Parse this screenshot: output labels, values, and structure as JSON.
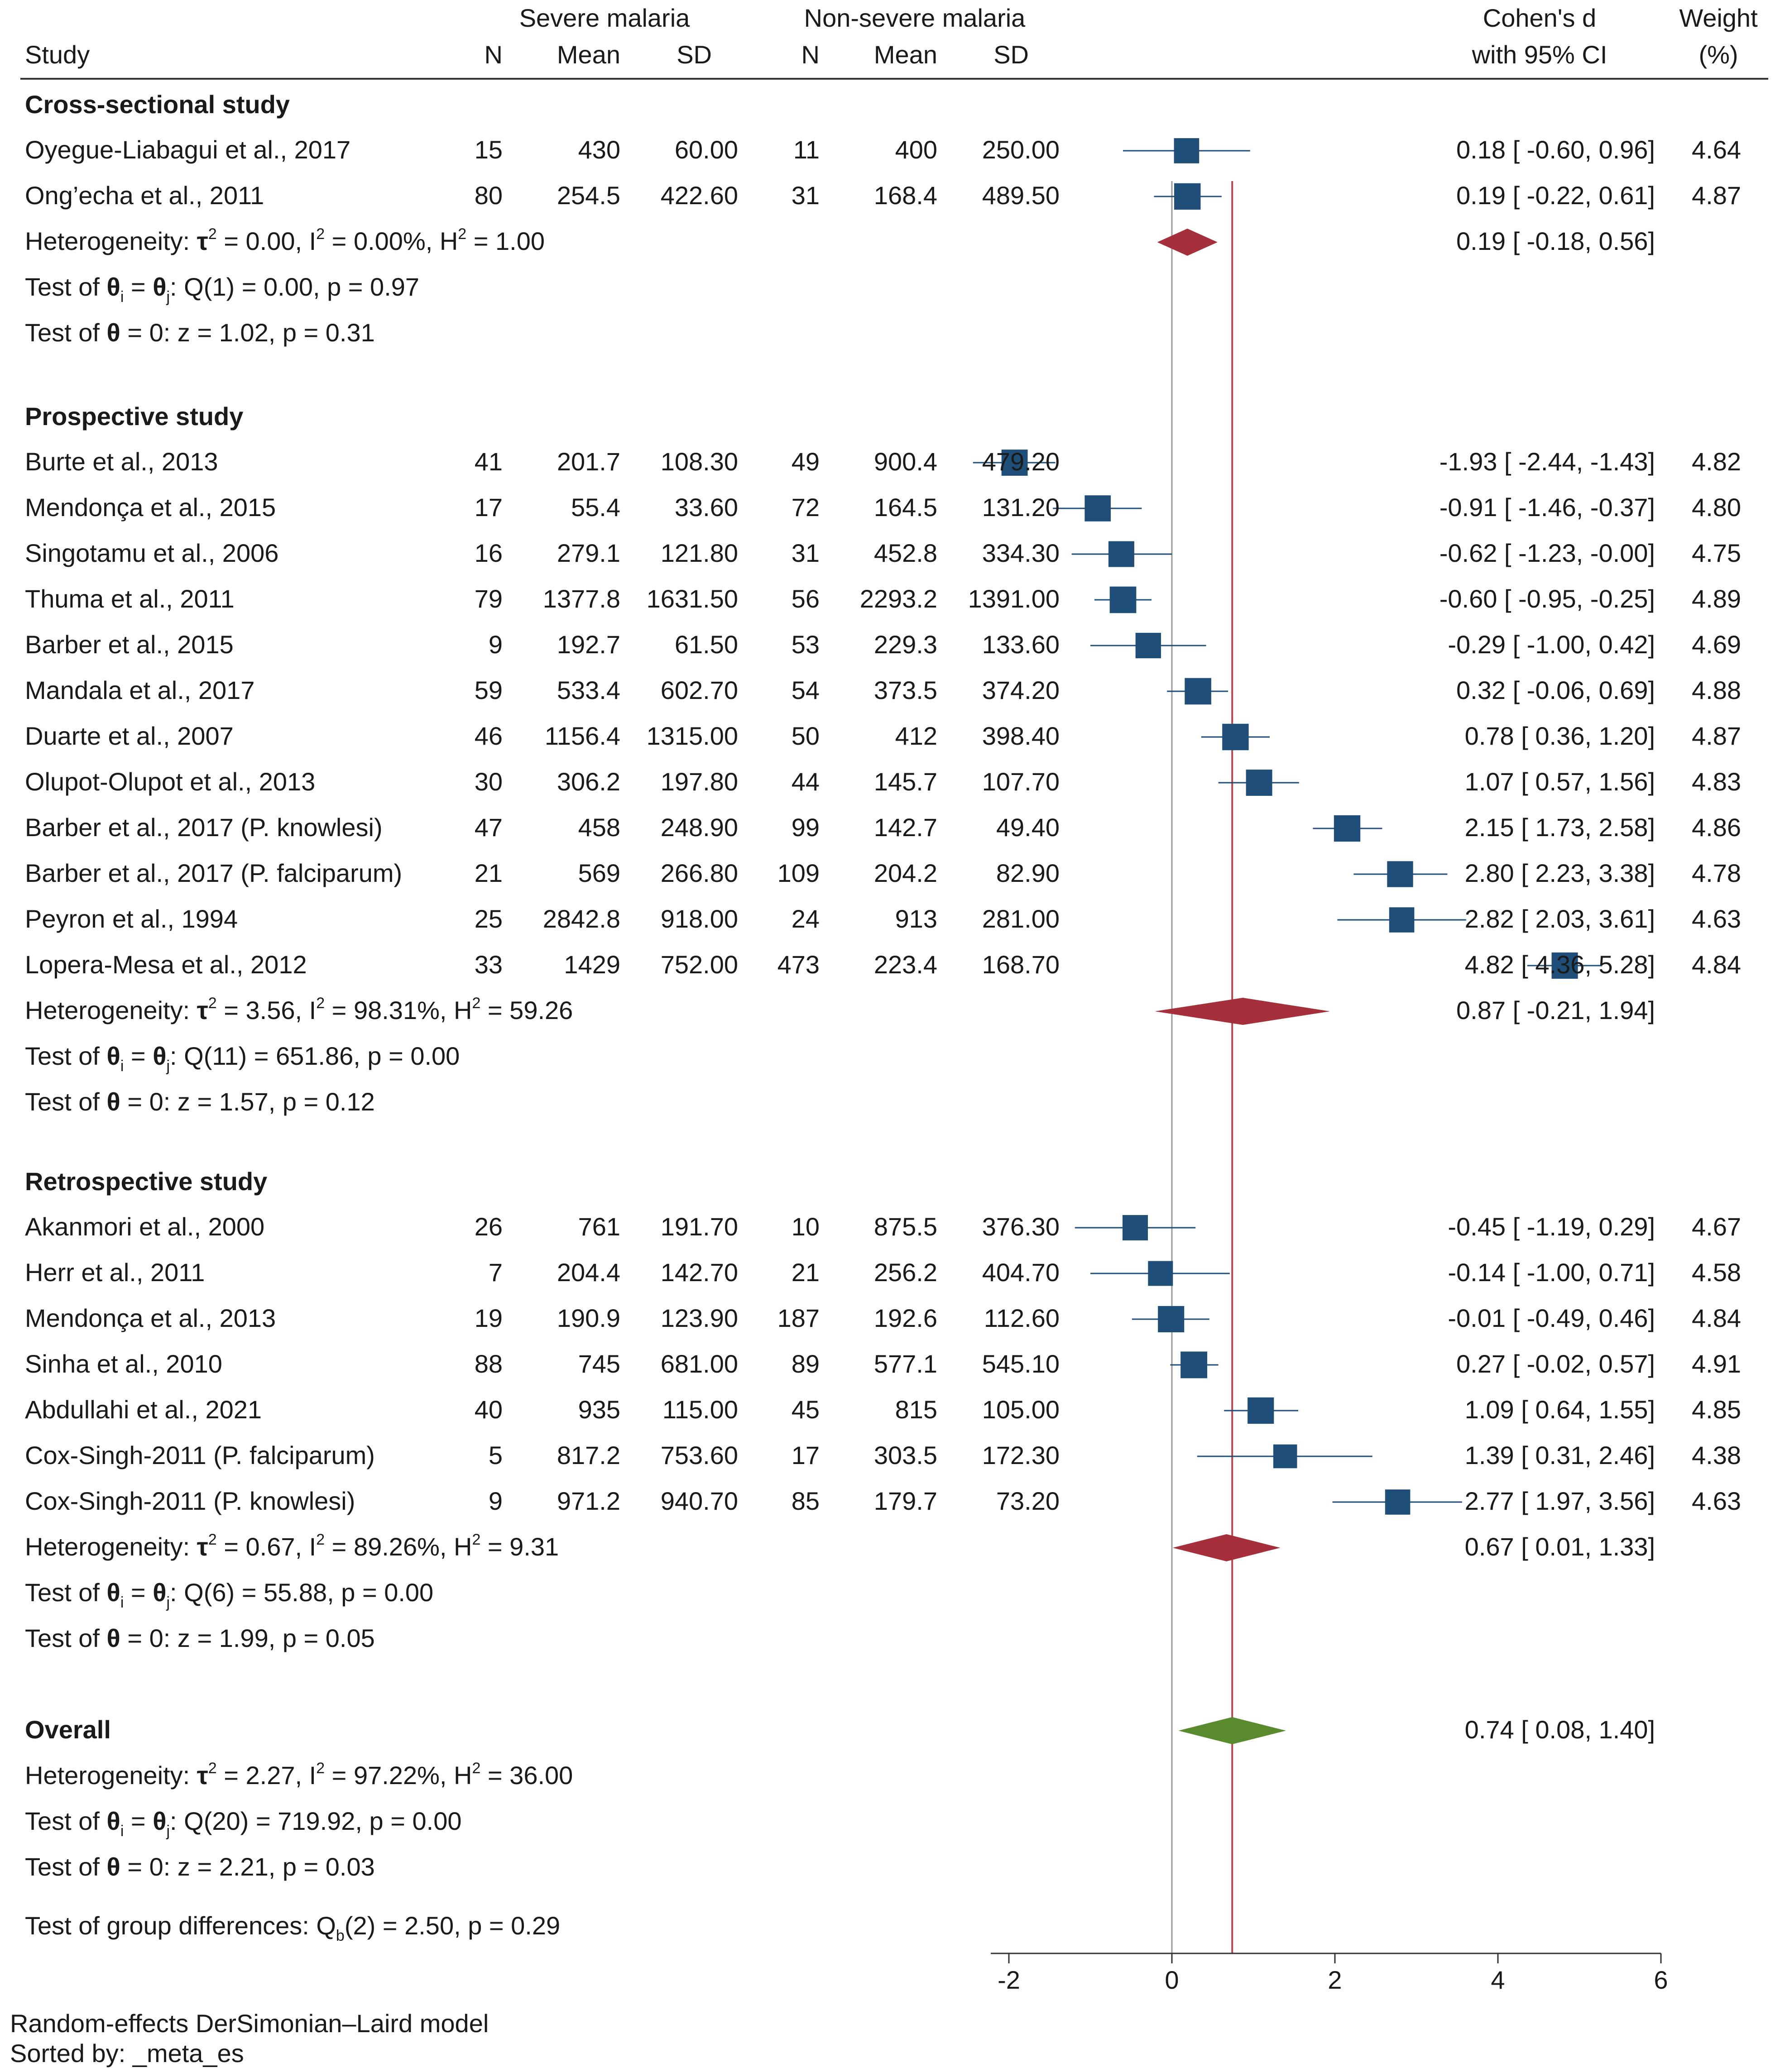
{
  "chart_data": {
    "type": "forest",
    "headers": {
      "study": "Study",
      "group1": "Severe malaria",
      "group2": "Non-severe malaria",
      "n": "N",
      "mean": "Mean",
      "sd": "SD",
      "effect_line1": "Cohen's d",
      "effect_line2": "with 95% CI",
      "weight_line1": "Weight",
      "weight_line2": "(%)"
    },
    "groups": [
      {
        "name": "Cross-sectional study",
        "studies": [
          {
            "study": "Oyegue-Liabagui et al., 2017",
            "n1": "15",
            "mean1": "430",
            "sd1": "60.00",
            "n2": "11",
            "mean2": "400",
            "sd2": "250.00",
            "d": 0.18,
            "lo": -0.6,
            "hi": 0.96,
            "ci_text": "0.18 [ -0.60,  0.96]",
            "weight": "4.64"
          },
          {
            "study": "Ong’echa et al., 2011",
            "n1": "80",
            "mean1": "254.5",
            "sd1": "422.60",
            "n2": "31",
            "mean2": "168.4",
            "sd2": "489.50",
            "d": 0.19,
            "lo": -0.22,
            "hi": 0.61,
            "ci_text": "0.19 [ -0.22,  0.61]",
            "weight": "4.87"
          }
        ],
        "pooled": {
          "d": 0.19,
          "lo": -0.18,
          "hi": 0.56,
          "ci_text": "0.19 [ -0.18,  0.56]"
        },
        "heterogeneity": {
          "prefix": "Heterogeneity: ",
          "tau2": " = 0.00, I",
          "i2": " = 0.00%, H",
          "h2": " = 1.00"
        },
        "test_q": ": Q(1) = 0.00, p = 0.97",
        "test_z": " = 0: z = 1.02, p = 0.31"
      },
      {
        "name": "Prospective study",
        "studies": [
          {
            "study": "Burte et al., 2013",
            "n1": "41",
            "mean1": "201.7",
            "sd1": "108.30",
            "n2": "49",
            "mean2": "900.4",
            "sd2": "479.20",
            "d": -1.93,
            "lo": -2.44,
            "hi": -1.43,
            "ci_text": "-1.93 [ -2.44, -1.43]",
            "weight": "4.82"
          },
          {
            "study": "Mendonça et al., 2015",
            "n1": "17",
            "mean1": "55.4",
            "sd1": "33.60",
            "n2": "72",
            "mean2": "164.5",
            "sd2": "131.20",
            "d": -0.91,
            "lo": -1.46,
            "hi": -0.37,
            "ci_text": "-0.91 [ -1.46, -0.37]",
            "weight": "4.80"
          },
          {
            "study": "Singotamu et al., 2006",
            "n1": "16",
            "mean1": "279.1",
            "sd1": "121.80",
            "n2": "31",
            "mean2": "452.8",
            "sd2": "334.30",
            "d": -0.62,
            "lo": -1.23,
            "hi": -0.0,
            "ci_text": "-0.62 [ -1.23, -0.00]",
            "weight": "4.75"
          },
          {
            "study": "Thuma et al., 2011",
            "n1": "79",
            "mean1": "1377.8",
            "sd1": "1631.50",
            "n2": "56",
            "mean2": "2293.2",
            "sd2": "1391.00",
            "d": -0.6,
            "lo": -0.95,
            "hi": -0.25,
            "ci_text": "-0.60 [ -0.95, -0.25]",
            "weight": "4.89"
          },
          {
            "study": "Barber et al., 2015",
            "n1": "9",
            "mean1": "192.7",
            "sd1": "61.50",
            "n2": "53",
            "mean2": "229.3",
            "sd2": "133.60",
            "d": -0.29,
            "lo": -1.0,
            "hi": 0.42,
            "ci_text": "-0.29 [ -1.00,  0.42]",
            "weight": "4.69"
          },
          {
            "study": "Mandala et al., 2017",
            "n1": "59",
            "mean1": "533.4",
            "sd1": "602.70",
            "n2": "54",
            "mean2": "373.5",
            "sd2": "374.20",
            "d": 0.32,
            "lo": -0.06,
            "hi": 0.69,
            "ci_text": "0.32 [ -0.06,  0.69]",
            "weight": "4.88"
          },
          {
            "study": "Duarte et al., 2007",
            "n1": "46",
            "mean1": "1156.4",
            "sd1": "1315.00",
            "n2": "50",
            "mean2": "412",
            "sd2": "398.40",
            "d": 0.78,
            "lo": 0.36,
            "hi": 1.2,
            "ci_text": "0.78 [  0.36,  1.20]",
            "weight": "4.87"
          },
          {
            "study": "Olupot-Olupot et al., 2013",
            "n1": "30",
            "mean1": "306.2",
            "sd1": "197.80",
            "n2": "44",
            "mean2": "145.7",
            "sd2": "107.70",
            "d": 1.07,
            "lo": 0.57,
            "hi": 1.56,
            "ci_text": "1.07 [  0.57,  1.56]",
            "weight": "4.83"
          },
          {
            "study": "Barber et al., 2017 (P. knowlesi)",
            "n1": "47",
            "mean1": "458",
            "sd1": "248.90",
            "n2": "99",
            "mean2": "142.7",
            "sd2": "49.40",
            "d": 2.15,
            "lo": 1.73,
            "hi": 2.58,
            "ci_text": "2.15 [  1.73,  2.58]",
            "weight": "4.86"
          },
          {
            "study": "Barber et al., 2017 (P. falciparum)",
            "n1": "21",
            "mean1": "569",
            "sd1": "266.80",
            "n2": "109",
            "mean2": "204.2",
            "sd2": "82.90",
            "d": 2.8,
            "lo": 2.23,
            "hi": 3.38,
            "ci_text": "2.80 [  2.23,  3.38]",
            "weight": "4.78"
          },
          {
            "study": "Peyron et al., 1994",
            "n1": "25",
            "mean1": "2842.8",
            "sd1": "918.00",
            "n2": "24",
            "mean2": "913",
            "sd2": "281.00",
            "d": 2.82,
            "lo": 2.03,
            "hi": 3.61,
            "ci_text": "2.82 [  2.03,  3.61]",
            "weight": "4.63"
          },
          {
            "study": "Lopera-Mesa et al., 2012",
            "n1": "33",
            "mean1": "1429",
            "sd1": "752.00",
            "n2": "473",
            "mean2": "223.4",
            "sd2": "168.70",
            "d": 4.82,
            "lo": 4.36,
            "hi": 5.28,
            "ci_text": "4.82 [  4.36,  5.28]",
            "weight": "4.84"
          }
        ],
        "pooled": {
          "d": 0.87,
          "lo": -0.21,
          "hi": 1.94,
          "ci_text": "0.87 [ -0.21,  1.94]"
        },
        "heterogeneity": {
          "prefix": "Heterogeneity: ",
          "tau2": " = 3.56, I",
          "i2": " = 98.31%, H",
          "h2": " = 59.26"
        },
        "test_q": ": Q(11) = 651.86, p = 0.00",
        "test_z": " = 0: z = 1.57, p = 0.12"
      },
      {
        "name": "Retrospective study",
        "studies": [
          {
            "study": "Akanmori et al., 2000",
            "n1": "26",
            "mean1": "761",
            "sd1": "191.70",
            "n2": "10",
            "mean2": "875.5",
            "sd2": "376.30",
            "d": -0.45,
            "lo": -1.19,
            "hi": 0.29,
            "ci_text": "-0.45 [ -1.19,  0.29]",
            "weight": "4.67"
          },
          {
            "study": "Herr et al., 2011",
            "n1": "7",
            "mean1": "204.4",
            "sd1": "142.70",
            "n2": "21",
            "mean2": "256.2",
            "sd2": "404.70",
            "d": -0.14,
            "lo": -1.0,
            "hi": 0.71,
            "ci_text": "-0.14 [ -1.00,  0.71]",
            "weight": "4.58"
          },
          {
            "study": "Mendonça et al., 2013",
            "n1": "19",
            "mean1": "190.9",
            "sd1": "123.90",
            "n2": "187",
            "mean2": "192.6",
            "sd2": "112.60",
            "d": -0.01,
            "lo": -0.49,
            "hi": 0.46,
            "ci_text": "-0.01 [ -0.49,  0.46]",
            "weight": "4.84"
          },
          {
            "study": "Sinha et al., 2010",
            "n1": "88",
            "mean1": "745",
            "sd1": "681.00",
            "n2": "89",
            "mean2": "577.1",
            "sd2": "545.10",
            "d": 0.27,
            "lo": -0.02,
            "hi": 0.57,
            "ci_text": "0.27 [ -0.02,  0.57]",
            "weight": "4.91"
          },
          {
            "study": "Abdullahi et al., 2021",
            "n1": "40",
            "mean1": "935",
            "sd1": "115.00",
            "n2": "45",
            "mean2": "815",
            "sd2": "105.00",
            "d": 1.09,
            "lo": 0.64,
            "hi": 1.55,
            "ci_text": "1.09 [  0.64,  1.55]",
            "weight": "4.85"
          },
          {
            "study": "Cox-Singh-2011 (P. falciparum)",
            "n1": "5",
            "mean1": "817.2",
            "sd1": "753.60",
            "n2": "17",
            "mean2": "303.5",
            "sd2": "172.30",
            "d": 1.39,
            "lo": 0.31,
            "hi": 2.46,
            "ci_text": "1.39 [  0.31,  2.46]",
            "weight": "4.38"
          },
          {
            "study": "Cox-Singh-2011 (P. knowlesi)",
            "n1": "9",
            "mean1": "971.2",
            "sd1": "940.70",
            "n2": "85",
            "mean2": "179.7",
            "sd2": "73.20",
            "d": 2.77,
            "lo": 1.97,
            "hi": 3.56,
            "ci_text": "2.77 [  1.97,  3.56]",
            "weight": "4.63"
          }
        ],
        "pooled": {
          "d": 0.67,
          "lo": 0.01,
          "hi": 1.33,
          "ci_text": "0.67 [  0.01,  1.33]"
        },
        "heterogeneity": {
          "prefix": "Heterogeneity: ",
          "tau2": " = 0.67, I",
          "i2": " = 89.26%, H",
          "h2": " = 9.31"
        },
        "test_q": ": Q(6) = 55.88, p = 0.00",
        "test_z": " = 0: z = 1.99, p = 0.05"
      }
    ],
    "overall": {
      "label": "Overall",
      "d": 0.74,
      "lo": 0.08,
      "hi": 1.4,
      "ci_text": "0.74 [  0.08,  1.40]",
      "heterogeneity": {
        "prefix": "Heterogeneity: ",
        "tau2": " = 2.27, I",
        "i2": " = 97.22%, H",
        "h2": " = 36.00"
      },
      "test_q": ": Q(20) = 719.92, p = 0.00",
      "test_z": " = 0: z = 2.21, p = 0.03"
    },
    "group_test": {
      "prefix": "Test of group differences: Q",
      "sub": "b",
      "suffix": "(2) = 2.50, p = 0.29"
    },
    "labels": {
      "test_prefix": "Test of ",
      "theta": "θ",
      "theta_sub_i": "i",
      "theta_sub_j": "j",
      "equals": " = ",
      "tau": "τ",
      "exp2": "2"
    },
    "x_axis": {
      "min": -2,
      "max": 6,
      "ticks": [
        -2,
        0,
        2,
        4,
        6
      ]
    },
    "colors": {
      "square": "#1f4e79",
      "subgroup_diamond": "#a5303b",
      "overall_diamond": "#5a8a2e",
      "ref_line": "#999999",
      "overall_line": "#b5484d",
      "ci_line": "#1f4e79"
    },
    "footer": {
      "line1": "Random-effects DerSimonian–Laird model",
      "line2": "Sorted by: _meta_es"
    }
  }
}
